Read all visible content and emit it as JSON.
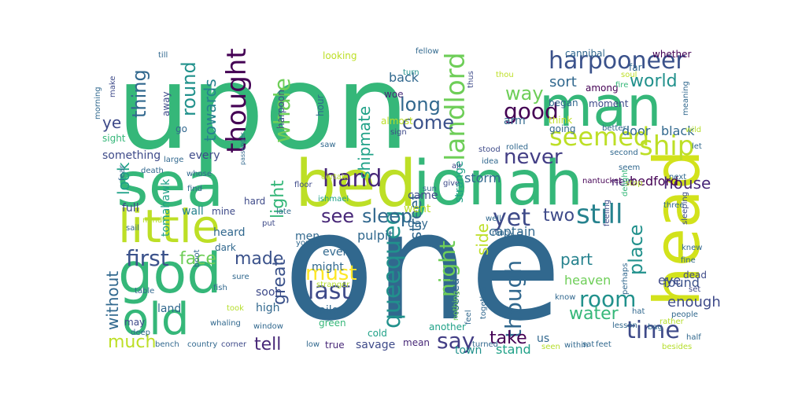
{
  "words": [
    {
      "text": "upon",
      "color": "#35b779"
    },
    {
      "text": "one",
      "color": "#31688e"
    },
    {
      "text": "man",
      "color": "#35b779"
    },
    {
      "text": "bed",
      "color": "#bddf26"
    },
    {
      "text": "jonah",
      "color": "#35b779"
    },
    {
      "text": "sea",
      "color": "#35b779"
    },
    {
      "text": "head",
      "color": "#d2e21b"
    },
    {
      "text": "little",
      "color": "#bddf26"
    },
    {
      "text": "god",
      "color": "#35b779"
    },
    {
      "text": "old",
      "color": "#35b779"
    },
    {
      "text": "harpooneer",
      "color": "#3b528b"
    },
    {
      "text": "ship",
      "color": "#bddf26"
    },
    {
      "text": "seemed",
      "color": "#bddf26"
    },
    {
      "text": "thought",
      "color": "#440154"
    },
    {
      "text": "whale",
      "color": "#6ece58"
    },
    {
      "text": "hand",
      "color": "#482878"
    },
    {
      "text": "landlord",
      "color": "#6ece58"
    },
    {
      "text": "queequeg",
      "color": "#21918c"
    },
    {
      "text": "night",
      "color": "#6ece58"
    },
    {
      "text": "though",
      "color": "#31688e"
    },
    {
      "text": "time",
      "color": "#3e4a89"
    },
    {
      "text": "room",
      "color": "#21918c"
    },
    {
      "text": "still",
      "color": "#26828e"
    },
    {
      "text": "yet",
      "color": "#3e4a89"
    },
    {
      "text": "first",
      "color": "#3b528b"
    },
    {
      "text": "last",
      "color": "#3e4a89"
    },
    {
      "text": "much",
      "color": "#bddf26"
    },
    {
      "text": "say",
      "color": "#433e85"
    },
    {
      "text": "never",
      "color": "#433e85"
    },
    {
      "text": "long",
      "color": "#31688e"
    },
    {
      "text": "good",
      "color": "#440154"
    },
    {
      "text": "way",
      "color": "#6ece58"
    },
    {
      "text": "come",
      "color": "#3b528b"
    },
    {
      "text": "see",
      "color": "#482878"
    },
    {
      "text": "sleep",
      "color": "#31688e"
    },
    {
      "text": "must",
      "color": "#fde725"
    },
    {
      "text": "made",
      "color": "#3b528b"
    },
    {
      "text": "face",
      "color": "#6ece58"
    },
    {
      "text": "great",
      "color": "#3b528b"
    },
    {
      "text": "tell",
      "color": "#482878"
    },
    {
      "text": "thing",
      "color": "#31688e"
    },
    {
      "text": "round",
      "color": "#21918c"
    },
    {
      "text": "towards",
      "color": "#26828e"
    },
    {
      "text": "world",
      "color": "#21918c"
    },
    {
      "text": "sort",
      "color": "#31688e"
    },
    {
      "text": "place",
      "color": "#21918c"
    },
    {
      "text": "water",
      "color": "#35b779"
    },
    {
      "text": "part",
      "color": "#26828e"
    },
    {
      "text": "two",
      "color": "#3e4a89"
    },
    {
      "text": "house",
      "color": "#482878"
    },
    {
      "text": "ye",
      "color": "#3e4a89"
    },
    {
      "text": "take",
      "color": "#440154"
    },
    {
      "text": "shipmate",
      "color": "#1fa187"
    },
    {
      "text": "street",
      "color": "#31688e"
    },
    {
      "text": "light",
      "color": "#35b779"
    },
    {
      "text": "look",
      "color": "#1fa187"
    },
    {
      "text": "without",
      "color": "#31688e"
    },
    {
      "text": "enough",
      "color": "#3e4a89"
    },
    {
      "text": "eye",
      "color": "#3e4a89"
    },
    {
      "text": "heaven",
      "color": "#6ece58"
    },
    {
      "text": "found",
      "color": "#3b528b"
    },
    {
      "text": "new",
      "color": "#482878"
    },
    {
      "text": "bedford",
      "color": "#440154"
    },
    {
      "text": "door",
      "color": "#31688e"
    },
    {
      "text": "black",
      "color": "#31688e"
    },
    {
      "text": "back",
      "color": "#31688e"
    },
    {
      "text": "woe",
      "color": "#482878"
    },
    {
      "text": "arm",
      "color": "#31688e"
    },
    {
      "text": "side",
      "color": "#bddf26"
    },
    {
      "text": "strange",
      "color": "#1fa187"
    },
    {
      "text": "storm",
      "color": "#31688e"
    },
    {
      "text": "came",
      "color": "#3e4a89"
    },
    {
      "text": "went",
      "color": "#bddf26"
    },
    {
      "text": "day",
      "color": "#31688e"
    },
    {
      "text": "men",
      "color": "#31688e"
    },
    {
      "text": "pulpit",
      "color": "#31688e"
    },
    {
      "text": "captain",
      "color": "#31688e"
    },
    {
      "text": "even",
      "color": "#31688e"
    },
    {
      "text": "might",
      "color": "#31688e"
    },
    {
      "text": "soon",
      "color": "#3e4a89"
    },
    {
      "text": "high",
      "color": "#31688e"
    },
    {
      "text": "sailor",
      "color": "#31688e"
    },
    {
      "text": "green",
      "color": "#35b779"
    },
    {
      "text": "us",
      "color": "#31688e"
    },
    {
      "text": "stand",
      "color": "#1fa187"
    },
    {
      "text": "town",
      "color": "#21918c"
    },
    {
      "text": "looked",
      "color": "#31688e"
    },
    {
      "text": "another",
      "color": "#1fa187"
    },
    {
      "text": "savage",
      "color": "#3e4a89"
    },
    {
      "text": "true",
      "color": "#482878"
    },
    {
      "text": "cold",
      "color": "#1fa187"
    },
    {
      "text": "mean",
      "color": "#482878"
    },
    {
      "text": "hard",
      "color": "#3e4a89"
    },
    {
      "text": "wall",
      "color": "#26828e"
    },
    {
      "text": "mine",
      "color": "#3e4a89"
    },
    {
      "text": "heard",
      "color": "#31688e"
    },
    {
      "text": "dark",
      "color": "#31688e"
    },
    {
      "text": "full",
      "color": "#3e4a89"
    },
    {
      "text": "tomahawk",
      "color": "#1fa187"
    },
    {
      "text": "land",
      "color": "#31688e"
    },
    {
      "text": "may",
      "color": "#3e4a89"
    },
    {
      "text": "every",
      "color": "#3e4a89"
    },
    {
      "text": "something",
      "color": "#3e4a89"
    },
    {
      "text": "sight",
      "color": "#35b779"
    },
    {
      "text": "go",
      "color": "#31688e"
    },
    {
      "text": "away",
      "color": "#3e4a89"
    },
    {
      "text": "almost",
      "color": "#bddf26"
    },
    {
      "text": "think",
      "color": "#bddf26"
    },
    {
      "text": "going",
      "color": "#31688e"
    },
    {
      "text": "began",
      "color": "#31688e"
    },
    {
      "text": "moment",
      "color": "#3e4a89"
    },
    {
      "text": "among",
      "color": "#440154"
    },
    {
      "text": "looking",
      "color": "#bddf26"
    },
    {
      "text": "harpoon",
      "color": "#3e4a89"
    },
    {
      "text": "hour",
      "color": "#31688e"
    },
    {
      "text": "sign",
      "color": "#3e4a89"
    },
    {
      "text": "make",
      "color": "#3e4a89"
    },
    {
      "text": "morning",
      "color": "#31688e"
    },
    {
      "text": "till",
      "color": "#31688e"
    },
    {
      "text": "far",
      "color": "#31688e"
    },
    {
      "text": "whether",
      "color": "#440154"
    },
    {
      "text": "cannibal",
      "color": "#31688e"
    },
    {
      "text": "fellow",
      "color": "#31688e"
    },
    {
      "text": "thus",
      "color": "#3e4a89"
    },
    {
      "text": "turn",
      "color": "#21918c"
    },
    {
      "text": "thou",
      "color": "#bddf26"
    },
    {
      "text": "soul",
      "color": "#bddf26"
    },
    {
      "text": "fire",
      "color": "#35b779"
    },
    {
      "text": "meaning",
      "color": "#31688e"
    },
    {
      "text": "better",
      "color": "#31688e"
    },
    {
      "text": "wild",
      "color": "#b5de2b"
    },
    {
      "text": "second",
      "color": "#31688e"
    },
    {
      "text": "seem",
      "color": "#31688e"
    },
    {
      "text": "next",
      "color": "#31688e"
    },
    {
      "text": "three",
      "color": "#31688e"
    },
    {
      "text": "stop",
      "color": "#b5de2b"
    },
    {
      "text": "sleeping",
      "color": "#3e4a89"
    },
    {
      "text": "let",
      "color": "#31688e"
    },
    {
      "text": "feeling",
      "color": "#3e4a89"
    },
    {
      "text": "delight",
      "color": "#35b779"
    },
    {
      "text": "idea",
      "color": "#31688e"
    },
    {
      "text": "rolled",
      "color": "#31688e"
    },
    {
      "text": "stood",
      "color": "#3e4a89"
    },
    {
      "text": "give",
      "color": "#3e4a89"
    },
    {
      "text": "sun",
      "color": "#31688e"
    },
    {
      "text": "air",
      "color": "#3e4a89"
    },
    {
      "text": "saw",
      "color": "#31688e"
    },
    {
      "text": "certain",
      "color": "#b5de2b"
    },
    {
      "text": "floor",
      "color": "#3e4a89"
    },
    {
      "text": "passenger",
      "color": "#31688e"
    },
    {
      "text": "large",
      "color": "#31688e"
    },
    {
      "text": "whose",
      "color": "#31688e"
    },
    {
      "text": "death",
      "color": "#31688e"
    },
    {
      "text": "fear",
      "color": "#31688e"
    },
    {
      "text": "find",
      "color": "#31688e"
    },
    {
      "text": "ishmael",
      "color": "#1fa187"
    },
    {
      "text": "put",
      "color": "#3e4a89"
    },
    {
      "text": "late",
      "color": "#31688e"
    },
    {
      "text": "young",
      "color": "#31688e"
    },
    {
      "text": "well",
      "color": "#31688e"
    },
    {
      "text": "many",
      "color": "#31688e"
    },
    {
      "text": "nantucket",
      "color": "#440154"
    },
    {
      "text": "knew",
      "color": "#31688e"
    },
    {
      "text": "fine",
      "color": "#31688e"
    },
    {
      "text": "dead",
      "color": "#3e4a89"
    },
    {
      "text": "set",
      "color": "#3e4a89"
    },
    {
      "text": "perhaps",
      "color": "#31688e"
    },
    {
      "text": "four",
      "color": "#31688e"
    },
    {
      "text": "nothing",
      "color": "#6ece58"
    },
    {
      "text": "stranger",
      "color": "#b5de2b"
    },
    {
      "text": "together",
      "color": "#31688e"
    },
    {
      "text": "people",
      "color": "#31688e"
    },
    {
      "text": "know",
      "color": "#31688e"
    },
    {
      "text": "hat",
      "color": "#31688e"
    },
    {
      "text": "bag",
      "color": "#31688e"
    },
    {
      "text": "lesson",
      "color": "#31688e"
    },
    {
      "text": "rather",
      "color": "#b5de2b"
    },
    {
      "text": "half",
      "color": "#31688e"
    },
    {
      "text": "besides",
      "color": "#b5de2b"
    },
    {
      "text": "feet",
      "color": "#31688e"
    },
    {
      "text": "within",
      "color": "#31688e"
    },
    {
      "text": "sat",
      "color": "#31688e"
    },
    {
      "text": "seen",
      "color": "#b5de2b"
    },
    {
      "text": "turned",
      "color": "#31688e"
    },
    {
      "text": "low",
      "color": "#31688e"
    },
    {
      "text": "corner",
      "color": "#3e4a89"
    },
    {
      "text": "country",
      "color": "#31688e"
    },
    {
      "text": "bench",
      "color": "#31688e"
    },
    {
      "text": "window",
      "color": "#31688e"
    },
    {
      "text": "deep",
      "color": "#31688e"
    },
    {
      "text": "took",
      "color": "#b5de2b"
    },
    {
      "text": "whaling",
      "color": "#31688e"
    },
    {
      "text": "table",
      "color": "#31688e"
    },
    {
      "text": "fish",
      "color": "#31688e"
    },
    {
      "text": "sure",
      "color": "#31688e"
    },
    {
      "text": "sail",
      "color": "#31688e"
    },
    {
      "text": "mind",
      "color": "#b5de2b"
    },
    {
      "text": "boot",
      "color": "#31688e"
    },
    {
      "text": "feel",
      "color": "#31688e"
    }
  ]
}
